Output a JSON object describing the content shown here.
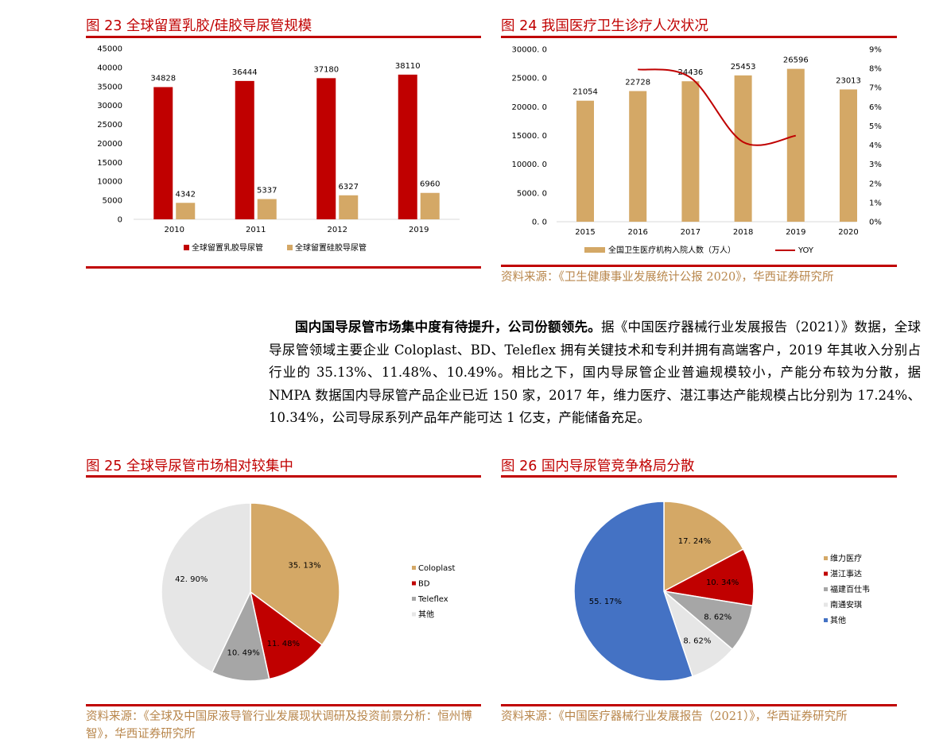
{
  "figures": {
    "fig23": {
      "title": "图 23 全球留置乳胶/硅胶导尿管规模"
    },
    "fig24": {
      "title": "图 24 我国医疗卫生诊疗人次状况",
      "source": "资料来源：《卫生健康事业发展统计公报 2020》，华西证券研究所"
    },
    "fig25": {
      "title": "图 25 全球导尿管市场相对较集中",
      "source": "资料来源：《全球及中国尿液导管行业发展现状调研及投资前景分析：恒州博智》，华西证券研究所"
    },
    "fig26": {
      "title": "图 26 国内导尿管竞争格局分散",
      "source": "资料来源：《中国医疗器械行业发展报告（2021）》，华西证券研究所"
    }
  },
  "paragraph": {
    "bold": "国内国导尿管市场集中度有待提升，公司份额领先。",
    "text": "据《中国医疗器械行业发展报告（2021）》数据，全球导尿管领域主要企业 Coloplast、BD、Teleflex 拥有关键技术和专利并拥有高端客户，2019 年其收入分别占行业的 35.13%、11.48%、10.49%。相比之下，国内导尿管企业普遍规模较小，产能分布较为分散，据 NMPA 数据国内导尿管产品企业已近 150 家，2017 年，维力医疗、湛江事达产能规模占比分别为 17.24%、10.34%，公司导尿系列产品年产能可达 1 亿支，产能储备充足。"
  },
  "chart_data": [
    {
      "id": "fig23",
      "type": "bar",
      "categories": [
        "2010",
        "2011",
        "2012",
        "2019"
      ],
      "series": [
        {
          "name": "全球留置乳胶导尿管",
          "values": [
            34828,
            36444,
            37180,
            38110
          ],
          "color": "#c00000"
        },
        {
          "name": "全球留置硅胶导尿管",
          "values": [
            4342,
            5337,
            6327,
            6960
          ],
          "color": "#d4a866"
        }
      ],
      "ylim": [
        0,
        45000
      ],
      "yticks": [
        "45000",
        "40000",
        "35000",
        "30000",
        "25000",
        "20000",
        "15000",
        "10000",
        "5000",
        "0"
      ],
      "legend": "bottom",
      "grid": false
    },
    {
      "id": "fig24",
      "type": "bar+line",
      "categories": [
        "2015",
        "2016",
        "2017",
        "2018",
        "2019",
        "2020"
      ],
      "series": [
        {
          "name": "全国卫生医疗机构入院人数（万人）",
          "values": [
            21054,
            22728,
            24436,
            25453,
            26596,
            23013
          ],
          "labels": [
            "21054",
            "22728",
            "24436",
            "25453",
            "26596",
            "23013"
          ],
          "color": "#d4a866",
          "axis": "left"
        },
        {
          "name": "YOY",
          "type": "line",
          "values": [
            null,
            7.95,
            7.52,
            4.16,
            4.49,
            null
          ],
          "color": "#c00000",
          "axis": "right"
        }
      ],
      "ylim": [
        0,
        30000
      ],
      "yticks": [
        "30000. 0",
        "25000. 0",
        "20000. 0",
        "15000. 0",
        "10000. 0",
        "5000. 0",
        "0. 0"
      ],
      "y2lim": [
        0,
        9
      ],
      "y2ticks": [
        "9%",
        "8%",
        "7%",
        "6%",
        "5%",
        "4%",
        "3%",
        "2%",
        "1%",
        "0%"
      ],
      "legend": "bottom",
      "grid": false
    },
    {
      "id": "fig25",
      "type": "pie",
      "slices": [
        {
          "name": "Coloplast",
          "value": 35.13,
          "label": "35. 13%",
          "color": "#d4a866"
        },
        {
          "name": "BD",
          "value": 11.48,
          "label": "11. 48%",
          "color": "#c00000"
        },
        {
          "name": "Teleflex",
          "value": 10.49,
          "label": "10. 49%",
          "color": "#a6a6a6"
        },
        {
          "name": "其他",
          "value": 42.9,
          "label": "42. 90%",
          "color": "#e6e6e6"
        }
      ],
      "legend": "right"
    },
    {
      "id": "fig26",
      "type": "pie",
      "slices": [
        {
          "name": "维力医疗",
          "value": 17.24,
          "label": "17. 24%",
          "color": "#d4a866"
        },
        {
          "name": "湛江事达",
          "value": 10.34,
          "label": "10. 34%",
          "color": "#c00000"
        },
        {
          "name": "福建百仕韦",
          "value": 8.62,
          "label": "8. 62%",
          "color": "#a6a6a6"
        },
        {
          "name": "南通安琪",
          "value": 8.62,
          "label": "8. 62%",
          "color": "#e6e6e6"
        },
        {
          "name": "其他",
          "value": 55.17,
          "label": "55. 17%",
          "color": "#4472c4"
        }
      ],
      "legend": "right"
    }
  ]
}
